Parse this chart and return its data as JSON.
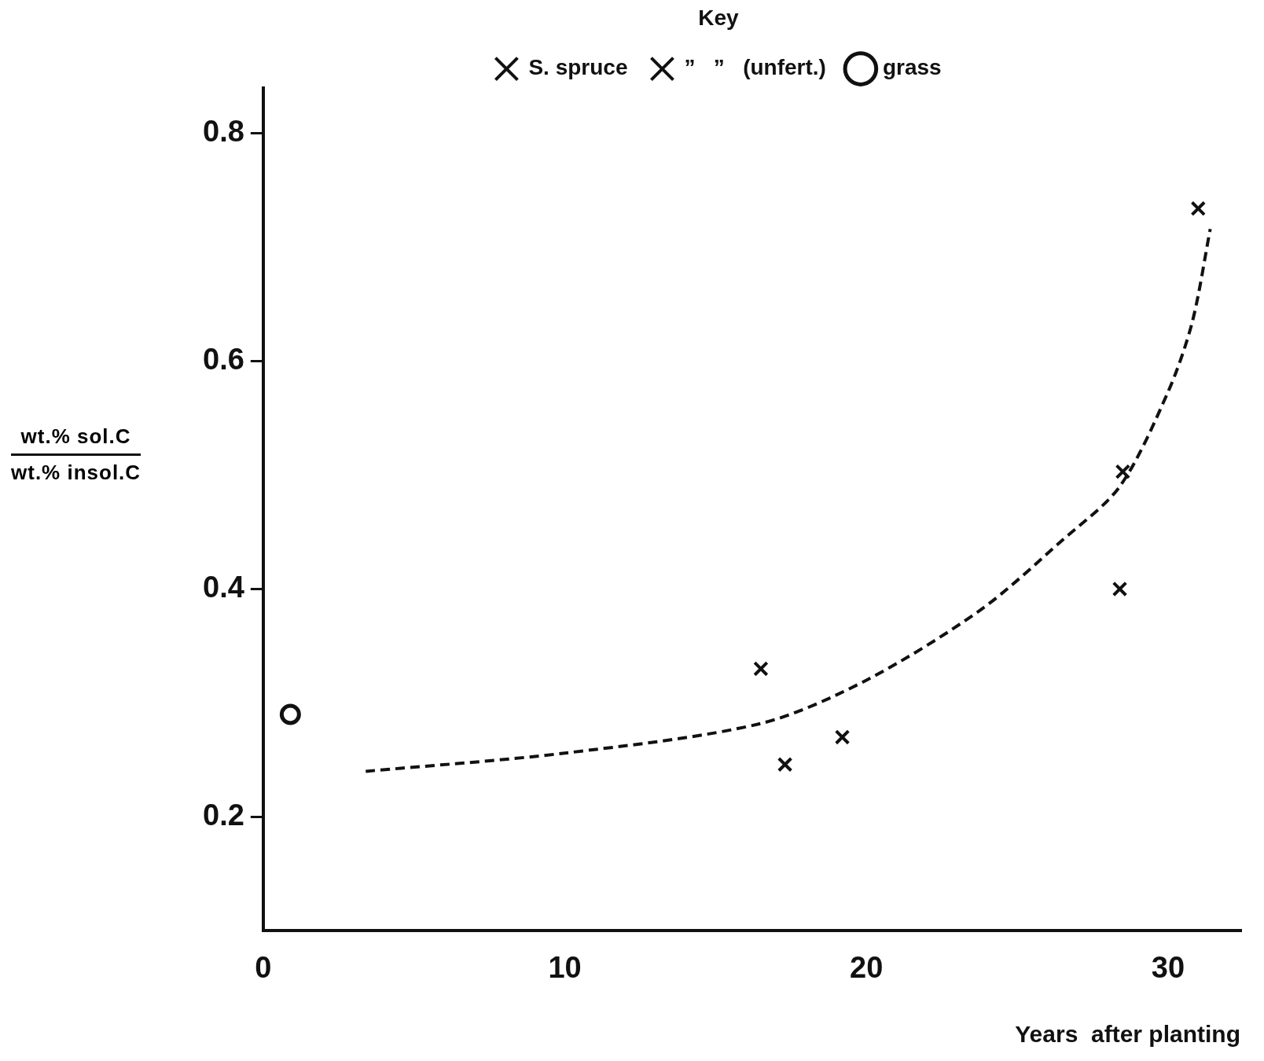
{
  "chart_data": {
    "type": "scatter",
    "xlabel": "Years  after planting",
    "ylabel": "wt.% sol.C\nwt.% insol.C",
    "legend_title": "Key",
    "legend": "top",
    "grid": false,
    "xlim": [
      0,
      32.4
    ],
    "xticks": [
      0,
      10,
      20,
      30
    ],
    "ylim": [
      0.1,
      0.84
    ],
    "yticks": [
      0.2,
      0.4,
      0.6,
      0.8
    ],
    "series": [
      {
        "name": "S. spruce",
        "color": "#111111",
        "marker": "cross",
        "x": [
          16.5,
          17.3,
          19.2,
          28.5,
          31.0
        ],
        "values": [
          0.33,
          0.246,
          0.27,
          0.503,
          0.734
        ]
      },
      {
        "name": "”   ”   (unfert.)",
        "color": "#111111",
        "marker": "cross",
        "x": [
          28.4
        ],
        "values": [
          0.4
        ]
      },
      {
        "name": "grass",
        "color": "#111111",
        "marker": "circle",
        "x": [
          0.9
        ],
        "values": [
          0.29
        ]
      },
      {
        "type": "line",
        "color": "#111111",
        "marker": "none",
        "line_style": "dashed",
        "x": [
          3.4,
          10,
          16.5,
          20,
          23.8,
          26.5,
          28.4,
          30,
          30.8,
          31.4
        ],
        "values": [
          0.24,
          0.256,
          0.282,
          0.32,
          0.382,
          0.443,
          0.49,
          0.573,
          0.634,
          0.716
        ]
      }
    ]
  }
}
